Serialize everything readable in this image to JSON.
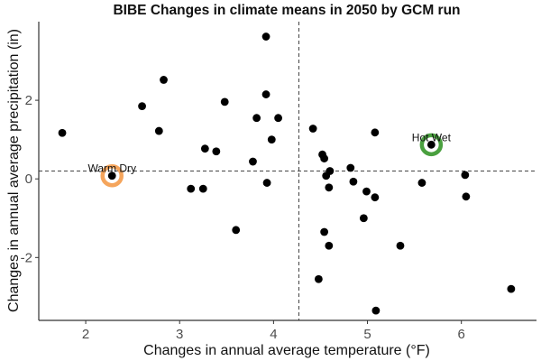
{
  "chart_data": {
    "type": "scatter",
    "title": "BIBE Changes in climate means in 2050 by GCM run",
    "xlabel": "Changes in annual average temperature (°F)",
    "ylabel": "Changes in annual average precipitation (in)",
    "xlim": [
      1.5,
      6.8
    ],
    "ylim": [
      -3.6,
      4.0
    ],
    "xticks": [
      2,
      3,
      4,
      5,
      6
    ],
    "yticks": [
      -2,
      0,
      2
    ],
    "x_tick_labels": [
      "2",
      "3",
      "4",
      "5",
      "6"
    ],
    "y_tick_labels": [
      "-2",
      "0",
      "2"
    ],
    "grid": false,
    "reference_lines": {
      "vertical_x": 4.27,
      "horizontal_y": 0.2,
      "style": "dashed"
    },
    "colors": {
      "points": "#000000",
      "warm_dry_ring": "#f5a55c",
      "hot_wet_ring": "#4aa03f",
      "reference_line": "#444444",
      "axis": "#333333"
    },
    "points": [
      {
        "x": 1.75,
        "y": 1.17
      },
      {
        "x": 2.28,
        "y": 0.08
      },
      {
        "x": 2.6,
        "y": 1.85
      },
      {
        "x": 2.78,
        "y": 1.22
      },
      {
        "x": 2.83,
        "y": 2.52
      },
      {
        "x": 3.12,
        "y": -0.25
      },
      {
        "x": 3.25,
        "y": -0.25
      },
      {
        "x": 3.27,
        "y": 0.77
      },
      {
        "x": 3.39,
        "y": 0.7
      },
      {
        "x": 3.48,
        "y": 1.96
      },
      {
        "x": 3.6,
        "y": -1.3
      },
      {
        "x": 3.78,
        "y": 0.44
      },
      {
        "x": 3.82,
        "y": 1.55
      },
      {
        "x": 3.92,
        "y": 3.62
      },
      {
        "x": 3.92,
        "y": 2.15
      },
      {
        "x": 3.93,
        "y": -0.1
      },
      {
        "x": 3.98,
        "y": 1.0
      },
      {
        "x": 4.05,
        "y": 1.55
      },
      {
        "x": 4.42,
        "y": 1.28
      },
      {
        "x": 4.48,
        "y": -2.55
      },
      {
        "x": 4.52,
        "y": 0.62
      },
      {
        "x": 4.54,
        "y": 0.52
      },
      {
        "x": 4.54,
        "y": -1.35
      },
      {
        "x": 4.56,
        "y": 0.08
      },
      {
        "x": 4.59,
        "y": -1.7
      },
      {
        "x": 4.59,
        "y": -0.22
      },
      {
        "x": 4.6,
        "y": 0.2
      },
      {
        "x": 4.82,
        "y": 0.28
      },
      {
        "x": 4.85,
        "y": -0.07
      },
      {
        "x": 4.96,
        "y": -1.0
      },
      {
        "x": 4.99,
        "y": -0.32
      },
      {
        "x": 5.08,
        "y": 1.18
      },
      {
        "x": 5.08,
        "y": -0.47
      },
      {
        "x": 5.09,
        "y": -3.35
      },
      {
        "x": 5.35,
        "y": -1.7
      },
      {
        "x": 5.58,
        "y": -0.1
      },
      {
        "x": 5.68,
        "y": 0.87
      },
      {
        "x": 6.04,
        "y": 0.1
      },
      {
        "x": 6.05,
        "y": -0.45
      },
      {
        "x": 6.53,
        "y": -2.8
      }
    ],
    "annotations": [
      {
        "label": "Warm Dry",
        "x": 2.28,
        "y": 0.08,
        "ring": "warm_dry_ring"
      },
      {
        "label": "Hot Wet",
        "x": 5.68,
        "y": 0.87,
        "ring": "hot_wet_ring"
      }
    ]
  }
}
